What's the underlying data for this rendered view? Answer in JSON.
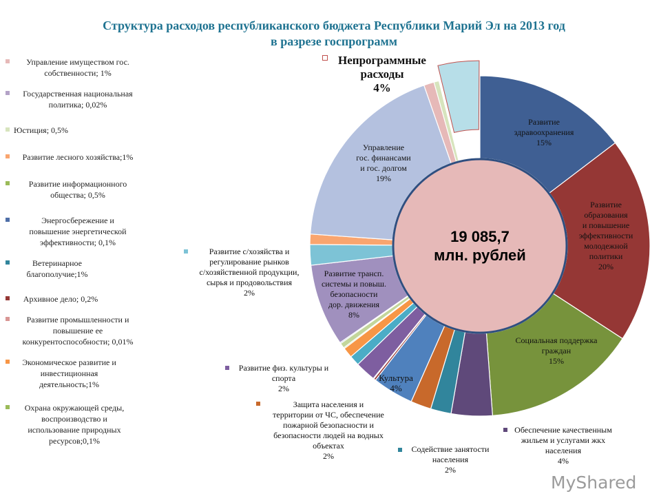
{
  "title": "Структура расходов республиканского бюджета Республики Марий Эл на 2013 год\nв разрезе госпрограмм",
  "watermark": "MyShared",
  "chart_data": {
    "type": "pie",
    "donut": true,
    "center_label": "19 085,7\nмлн. рублей",
    "start": "12 o'clock, clockwise",
    "slices": [
      {
        "name": "Развитие здравоохранения",
        "value": 15,
        "color": "#3F5F93",
        "label": "Развитие\nздравоохранения\n15%"
      },
      {
        "name": "Развитие образования и повышение эффективности молодежной политики",
        "value": 20,
        "color": "#953735",
        "label": "Развитие\nобразования\nи повышение\nэффективности\nмолодежной\nполитики\n20%"
      },
      {
        "name": "Социальная поддержка граждан",
        "value": 15,
        "color": "#77933C",
        "label": "Социальная поддержка\nграждан\n15%"
      },
      {
        "name": "Обеспечение качественным жильем и услугами ЖКХ населения",
        "value": 4,
        "color": "#5F497A",
        "label": "Обеспечение качественным\nжильем и услугами жкх\nнаселения\n4%"
      },
      {
        "name": "Содействие занятости населения",
        "value": 2,
        "color": "#31859C",
        "label": "Содействие занятости\nнаселения\n2%"
      },
      {
        "name": "Защита населения и территории от ЧС",
        "value": 2,
        "color": "#C8692B",
        "label": "Защита населения и\nтерритории от ЧС, обеспечение\nпожарной безопасности и\nбезопасности людей на водных\nобъектах\n2%"
      },
      {
        "name": "Культура",
        "value": 4,
        "color": "#4F81BD",
        "label": "Культура\n4%"
      },
      {
        "name": "Архивное дело",
        "value": 0.2,
        "color": "#953735",
        "label": "Архивное дело; 0,2%"
      },
      {
        "name": "Развитие промышленности и повышение ее конкурентоспособности",
        "value": 0.01,
        "color": "#D99694",
        "label": "Развитие промышленности и\nповышение ее\nконкурентоспособности; 0,01%"
      },
      {
        "name": "Развитие физ. культуры и спорта",
        "value": 2,
        "color": "#7E5EA0",
        "label": "Развитие физ. культуры и\nспорта\n2%"
      },
      {
        "name": "Ветеринарное благополучие",
        "value": 1,
        "color": "#4BACC6",
        "label": "Ветеринарное\nблагополучие;1%"
      },
      {
        "name": "Экономическое развитие и инвестиционная деятельность",
        "value": 1,
        "color": "#F79646",
        "label": "Экономическое развитие и\nинвестиционная\nдеятельность;1%"
      },
      {
        "name": "Охрана окружающей среды",
        "value": 0.1,
        "color": "#9BBB59",
        "label": "Охрана окружающей среды,\nвоспроизводство и\nиспользование природных\nресурсов;0,1%"
      },
      {
        "name": "Развитие информационного общества",
        "value": 0.5,
        "color": "#C3D69B",
        "label": "Развитие информационного\nобщества; 0,5%"
      },
      {
        "name": "Энергосбережение и повышение энергетической эффективности",
        "value": 0.1,
        "color": "#4F6FA8",
        "label": "Энергосбережение и\nповышение энергетической\nэффективности; 0,1%"
      },
      {
        "name": "Развитие трансп. системы и повыш. безопасности дор. движения",
        "value": 8,
        "color": "#A090BE",
        "label": "Развитие трансп.\nсистемы и повыш.\nбезопасности\nдор. движения\n8%"
      },
      {
        "name": "Развитие с/хозяйства и регулирование рынков",
        "value": 2,
        "color": "#7DC3D6",
        "label": "Развитие с/хозяйства и\nрегулирование рынков\nс/хозяйственной продукции,\nсырья и продовольствия\n2%"
      },
      {
        "name": "Развитие лесного хозяйства",
        "value": 1,
        "color": "#F9A56F",
        "label": "Развитие лесного хозяйства;1%"
      },
      {
        "name": "Управление гос. финансами и гос. долгом",
        "value": 19,
        "color": "#B4C1DF",
        "label": "Управление\nгос. финансами\nи гос. долгом\n19%"
      },
      {
        "name": "Управление имуществом гос. собственности",
        "value": 1,
        "color": "#E6B9B8",
        "label": "Управление имуществом гос.\nсобственности; 1%"
      },
      {
        "name": "Юстиция",
        "value": 0.5,
        "color": "#D7E4BD",
        "label": "Юстиция; 0,5%"
      },
      {
        "name": "Государственная национальная политика",
        "value": 0.02,
        "color": "#B3A2C7",
        "label": "Государственная национальная\nполитика; 0,02%"
      },
      {
        "name": "Непрограммные расходы",
        "value": 4,
        "color": "#B7DEE8",
        "label": "Непрограммные\nрасходы\n4%",
        "exploded": true
      }
    ]
  }
}
